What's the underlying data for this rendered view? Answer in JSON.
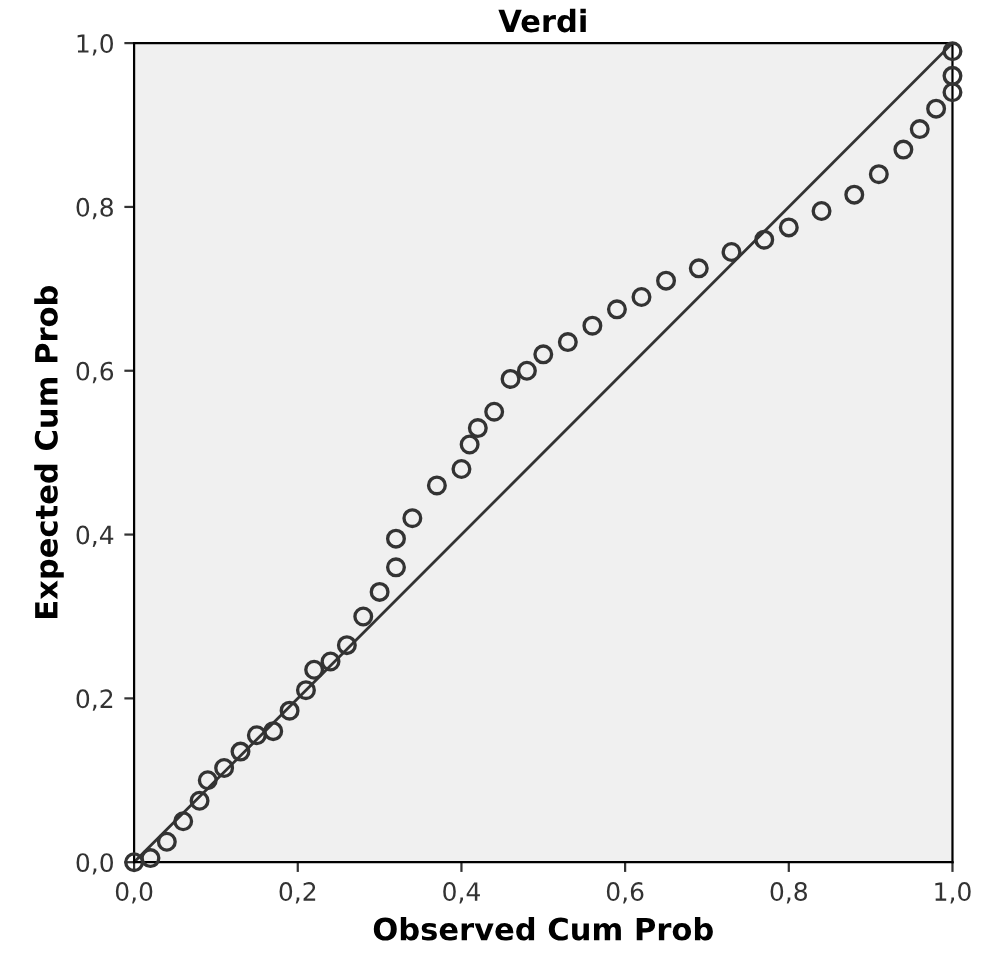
{
  "chart_data": {
    "type": "scatter",
    "title": "Verdi",
    "xlabel": "Observed Cum Prob",
    "ylabel": "Expected Cum Prob",
    "xlim": [
      0,
      1
    ],
    "ylim": [
      0,
      1
    ],
    "xticks": [
      {
        "value": 0,
        "label": "0,0"
      },
      {
        "value": 0.2,
        "label": "0,2"
      },
      {
        "value": 0.4,
        "label": "0,4"
      },
      {
        "value": 0.6,
        "label": "0,6"
      },
      {
        "value": 0.8,
        "label": "0,8"
      },
      {
        "value": 1,
        "label": "1,0"
      }
    ],
    "yticks": [
      {
        "value": 0,
        "label": "0,0"
      },
      {
        "value": 0.2,
        "label": "0,2"
      },
      {
        "value": 0.4,
        "label": "0,4"
      },
      {
        "value": 0.6,
        "label": "0,6"
      },
      {
        "value": 0.8,
        "label": "0,8"
      },
      {
        "value": 1,
        "label": "1,0"
      }
    ],
    "grid": false,
    "legend": false,
    "series": [
      {
        "marker": "circle",
        "color": "#333333",
        "x": [
          0,
          0.02,
          0.04,
          0.06,
          0.08,
          0.09,
          0.11,
          0.13,
          0.15,
          0.17,
          0.19,
          0.21,
          0.22,
          0.24,
          0.26,
          0.28,
          0.3,
          0.32,
          0.32,
          0.34,
          0.37,
          0.4,
          0.41,
          0.42,
          0.44,
          0.46,
          0.48,
          0.5,
          0.53,
          0.56,
          0.59,
          0.62,
          0.65,
          0.69,
          0.73,
          0.77,
          0.8,
          0.84,
          0.88,
          0.91,
          0.94,
          0.96,
          0.98,
          1.0,
          1.0,
          1.0
        ],
        "values": [
          0,
          0.005,
          0.025,
          0.05,
          0.075,
          0.1,
          0.115,
          0.135,
          0.155,
          0.16,
          0.185,
          0.21,
          0.235,
          0.245,
          0.265,
          0.3,
          0.33,
          0.36,
          0.395,
          0.42,
          0.46,
          0.48,
          0.51,
          0.53,
          0.55,
          0.59,
          0.6,
          0.62,
          0.635,
          0.655,
          0.675,
          0.69,
          0.71,
          0.725,
          0.745,
          0.76,
          0.775,
          0.795,
          0.815,
          0.84,
          0.87,
          0.895,
          0.92,
          0.94,
          0.96,
          0.99
        ]
      },
      {
        "type": "line",
        "marker": "none",
        "color": "#333333",
        "x": [
          0,
          1
        ],
        "values": [
          0,
          1
        ]
      }
    ]
  }
}
